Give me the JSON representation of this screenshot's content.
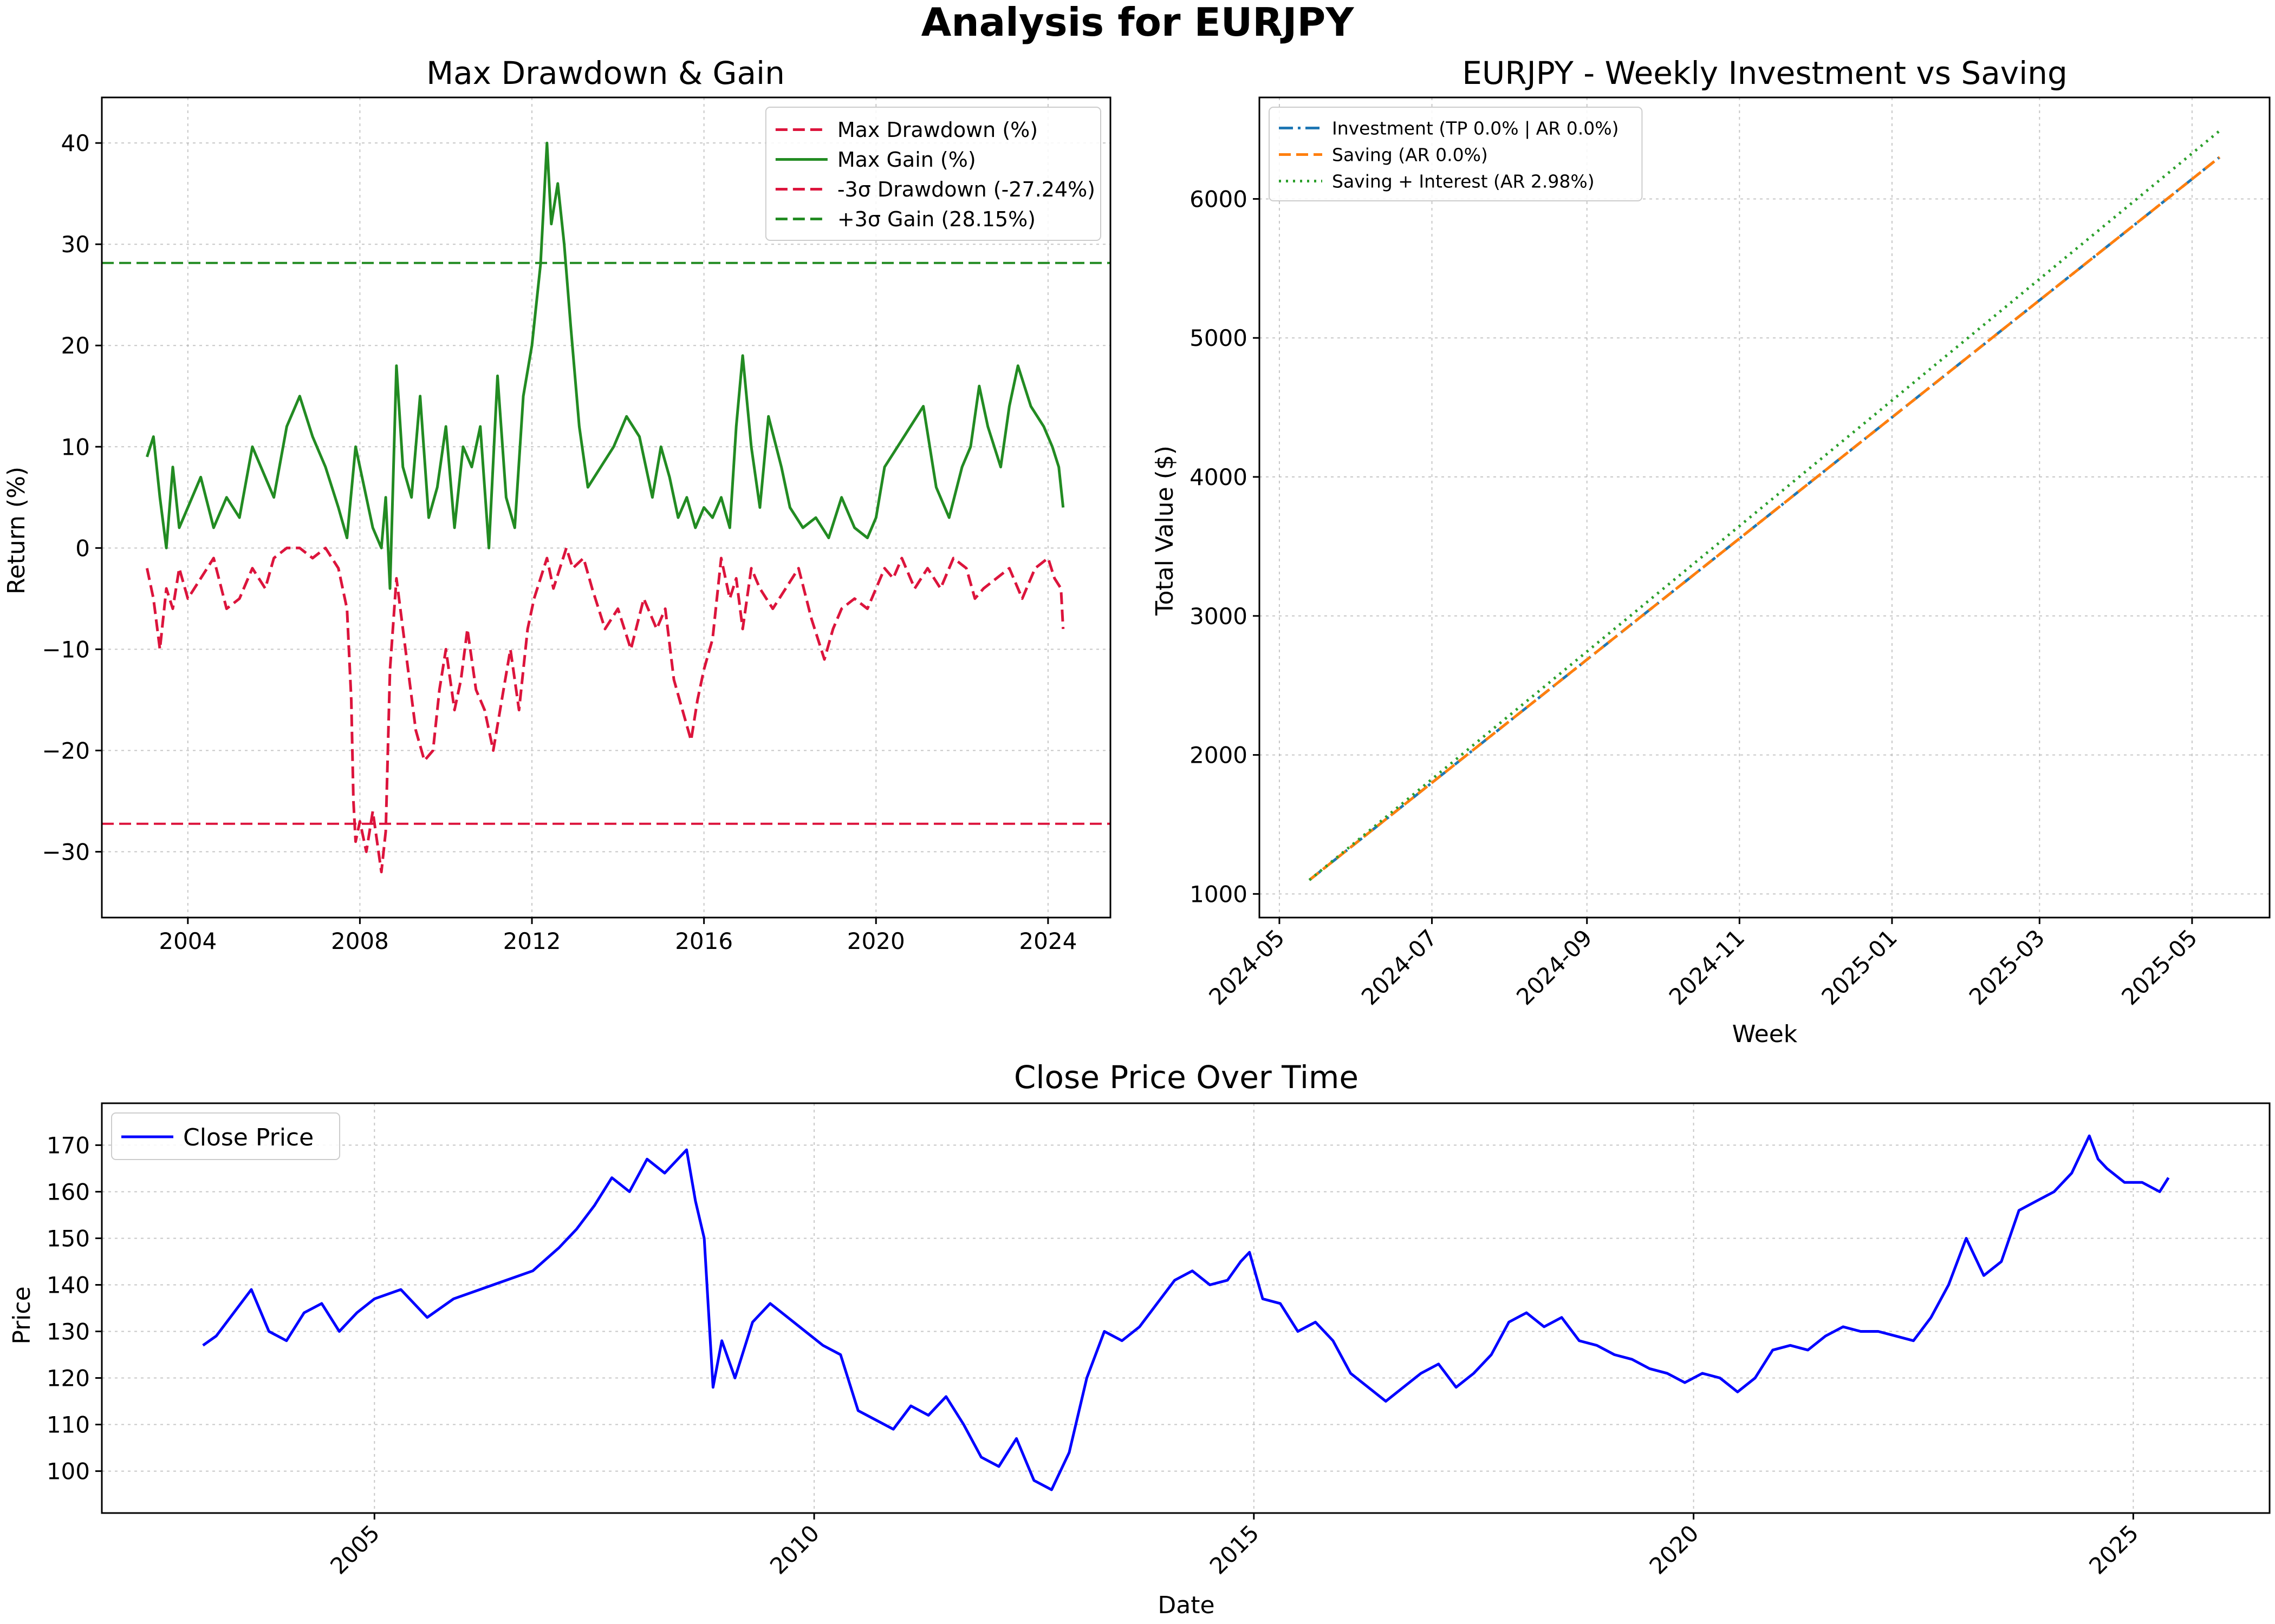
{
  "figure": {
    "suptitle": "Analysis for EURJPY"
  },
  "colors": {
    "drawdown": "#dc143c",
    "gain": "#228b22",
    "investment": "#1f77b4",
    "saving": "#ff7f0e",
    "interest": "#2ca02c",
    "close": "#0000ff",
    "grid": "#b0b0b0"
  },
  "chart_data": [
    {
      "type": "line",
      "title": "Max Drawdown & Gain",
      "xlabel": "",
      "ylabel": "Return (%)",
      "xlim": [
        2002.0,
        2025.45
      ],
      "ylim": [
        -36.5,
        44.5
      ],
      "xticks": [
        2004,
        2008,
        2012,
        2016,
        2020,
        2024
      ],
      "xtick_labels": [
        "2004",
        "2008",
        "2012",
        "2016",
        "2020",
        "2024"
      ],
      "yticks": [
        -30,
        -20,
        -10,
        0,
        10,
        20,
        30,
        40
      ],
      "ytick_labels": [
        "−30",
        "−20",
        "−10",
        "0",
        "10",
        "20",
        "30",
        "40"
      ],
      "grid": true,
      "legend_position": "top-right",
      "series": [
        {
          "name": "Max Drawdown (%)",
          "style": "dashed",
          "color": "#dc143c",
          "x": [
            2003.05,
            2003.2,
            2003.35,
            2003.5,
            2003.65,
            2003.8,
            2004.0,
            2004.3,
            2004.6,
            2004.9,
            2005.2,
            2005.5,
            2005.8,
            2006.0,
            2006.3,
            2006.6,
            2006.9,
            2007.2,
            2007.5,
            2007.7,
            2007.8,
            2007.85,
            2007.9,
            2008.0,
            2008.15,
            2008.3,
            2008.5,
            2008.6,
            2008.7,
            2008.85,
            2009.0,
            2009.3,
            2009.5,
            2009.7,
            2009.85,
            2010.0,
            2010.2,
            2010.35,
            2010.5,
            2010.7,
            2010.9,
            2011.1,
            2011.3,
            2011.5,
            2011.7,
            2011.9,
            2012.05,
            2012.2,
            2012.35,
            2012.5,
            2012.65,
            2012.8,
            2012.95,
            2013.2,
            2013.4,
            2013.7,
            2014.0,
            2014.3,
            2014.6,
            2014.9,
            2015.1,
            2015.3,
            2015.5,
            2015.7,
            2015.85,
            2016.0,
            2016.2,
            2016.4,
            2016.6,
            2016.75,
            2016.9,
            2017.1,
            2017.3,
            2017.6,
            2017.9,
            2018.2,
            2018.5,
            2018.8,
            2019.0,
            2019.2,
            2019.5,
            2019.8,
            2020.0,
            2020.2,
            2020.4,
            2020.6,
            2020.9,
            2021.2,
            2021.5,
            2021.8,
            2022.1,
            2022.3,
            2022.5,
            2022.8,
            2023.1,
            2023.4,
            2023.7,
            2024.0,
            2024.15,
            2024.3,
            2024.35
          ],
          "y": [
            -2,
            -5,
            -10,
            -4,
            -6,
            -2,
            -5,
            -3,
            -1,
            -6,
            -5,
            -2,
            -4,
            -1,
            0,
            0,
            -1,
            0,
            -2,
            -6,
            -15,
            -25,
            -29,
            -27,
            -30,
            -26,
            -32,
            -28,
            -12,
            -3,
            -8,
            -18,
            -21,
            -20,
            -14,
            -10,
            -16,
            -13,
            -8,
            -14,
            -16,
            -20,
            -15,
            -10,
            -16,
            -8,
            -5,
            -3,
            -1,
            -4,
            -2,
            0,
            -2,
            -1,
            -4,
            -8,
            -6,
            -10,
            -5,
            -8,
            -6,
            -13,
            -16,
            -19,
            -15,
            -12,
            -9,
            -1,
            -5,
            -3,
            -8,
            -2,
            -4,
            -6,
            -4,
            -2,
            -7,
            -11,
            -8,
            -6,
            -5,
            -6,
            -4,
            -2,
            -3,
            -1,
            -4,
            -2,
            -4,
            -1,
            -2,
            -5,
            -4,
            -3,
            -2,
            -5,
            -2,
            -1,
            -3,
            -4,
            -8
          ]
        },
        {
          "name": "Max Gain (%)",
          "style": "solid",
          "color": "#228b22",
          "x": [
            2003.05,
            2003.2,
            2003.35,
            2003.5,
            2003.65,
            2003.8,
            2004.0,
            2004.3,
            2004.6,
            2004.9,
            2005.2,
            2005.5,
            2005.8,
            2006.0,
            2006.3,
            2006.6,
            2006.9,
            2007.2,
            2007.5,
            2007.7,
            2007.9,
            2008.1,
            2008.3,
            2008.5,
            2008.6,
            2008.7,
            2008.85,
            2009.0,
            2009.2,
            2009.4,
            2009.6,
            2009.8,
            2010.0,
            2010.2,
            2010.4,
            2010.6,
            2010.8,
            2011.0,
            2011.2,
            2011.4,
            2011.6,
            2011.8,
            2012.0,
            2012.2,
            2012.35,
            2012.45,
            2012.6,
            2012.75,
            2012.9,
            2013.1,
            2013.3,
            2013.6,
            2013.9,
            2014.2,
            2014.5,
            2014.8,
            2015.0,
            2015.2,
            2015.4,
            2015.6,
            2015.8,
            2016.0,
            2016.2,
            2016.4,
            2016.6,
            2016.75,
            2016.9,
            2017.1,
            2017.3,
            2017.5,
            2017.8,
            2018.0,
            2018.3,
            2018.6,
            2018.9,
            2019.2,
            2019.5,
            2019.8,
            2020.0,
            2020.2,
            2020.5,
            2020.8,
            2021.1,
            2021.4,
            2021.7,
            2022.0,
            2022.2,
            2022.4,
            2022.6,
            2022.9,
            2023.1,
            2023.3,
            2023.6,
            2023.9,
            2024.1,
            2024.25,
            2024.35
          ],
          "y": [
            9,
            11,
            5,
            0,
            8,
            2,
            4,
            7,
            2,
            5,
            3,
            10,
            7,
            5,
            12,
            15,
            11,
            8,
            4,
            1,
            10,
            6,
            2,
            0,
            5,
            -4,
            18,
            8,
            5,
            15,
            3,
            6,
            12,
            2,
            10,
            8,
            12,
            0,
            17,
            5,
            2,
            15,
            20,
            28,
            40,
            32,
            36,
            30,
            22,
            12,
            6,
            8,
            10,
            13,
            11,
            5,
            10,
            7,
            3,
            5,
            2,
            4,
            3,
            5,
            2,
            12,
            19,
            10,
            4,
            13,
            8,
            4,
            2,
            3,
            1,
            5,
            2,
            1,
            3,
            8,
            10,
            12,
            14,
            6,
            3,
            8,
            10,
            16,
            12,
            8,
            14,
            18,
            14,
            12,
            10,
            8,
            4
          ]
        },
        {
          "name": "-3σ Drawdown (-27.24%)",
          "style": "dashed",
          "color": "#dc143c",
          "hline": -27.24
        },
        {
          "name": "+3σ Gain (28.15%)",
          "style": "dashed",
          "color": "#228b22",
          "hline": 28.15
        }
      ]
    },
    {
      "type": "line",
      "title": "EURJPY - Weekly Investment vs Saving",
      "xlabel": "Week",
      "ylabel": "Total Value ($)",
      "x_dates": [
        "2024-05-13",
        "2025-05-12"
      ],
      "xlim_dates": [
        "2024-04-23",
        "2025-06-01"
      ],
      "ylim": [
        830,
        6730
      ],
      "xticks": [
        "2024-05-01",
        "2024-07-01",
        "2024-09-01",
        "2024-11-01",
        "2025-01-01",
        "2025-03-01",
        "2025-05-01"
      ],
      "xtick_labels": [
        "2024-05",
        "2024-07",
        "2024-09",
        "2024-11",
        "2025-01",
        "2025-03",
        "2025-05"
      ],
      "yticks": [
        1000,
        2000,
        3000,
        4000,
        5000,
        6000
      ],
      "ytick_labels": [
        "1000",
        "2000",
        "3000",
        "4000",
        "5000",
        "6000"
      ],
      "grid": true,
      "legend_position": "top-left",
      "series": [
        {
          "name": "Investment (TP 0.0% | AR 0.0%)",
          "style": "dashdot",
          "color": "#1f77b4",
          "values": [
            1100,
            6300
          ]
        },
        {
          "name": "Saving (AR 0.0%)",
          "style": "dashed",
          "color": "#ff7f0e",
          "values": [
            1100,
            6300
          ]
        },
        {
          "name": "Saving + Interest (AR 2.98%)",
          "style": "dotted",
          "color": "#2ca02c",
          "values": [
            1100,
            6490
          ]
        }
      ]
    },
    {
      "type": "line",
      "title": "Close Price Over Time",
      "xlabel": "Date",
      "ylabel": "Price",
      "xlim": [
        2001.9,
        2026.55
      ],
      "ylim": [
        91,
        179
      ],
      "xticks": [
        2005,
        2010,
        2015,
        2020,
        2025
      ],
      "xtick_labels": [
        "2005",
        "2010",
        "2015",
        "2020",
        "2025"
      ],
      "yticks": [
        100,
        110,
        120,
        130,
        140,
        150,
        160,
        170
      ],
      "ytick_labels": [
        "100",
        "110",
        "120",
        "130",
        "140",
        "150",
        "160",
        "170"
      ],
      "grid": true,
      "legend_position": "top-left",
      "series": [
        {
          "name": "Close Price",
          "style": "solid",
          "color": "#0000ff",
          "x": [
            2003.05,
            2003.2,
            2003.4,
            2003.6,
            2003.8,
            2004.0,
            2004.2,
            2004.4,
            2004.6,
            2004.8,
            2005.0,
            2005.3,
            2005.6,
            2005.9,
            2006.2,
            2006.5,
            2006.8,
            2007.1,
            2007.3,
            2007.5,
            2007.7,
            2007.9,
            2008.1,
            2008.3,
            2008.45,
            2008.55,
            2008.65,
            2008.75,
            2008.85,
            2008.95,
            2009.1,
            2009.3,
            2009.5,
            2009.7,
            2009.9,
            2010.1,
            2010.3,
            2010.5,
            2010.7,
            2010.9,
            2011.1,
            2011.3,
            2011.5,
            2011.7,
            2011.9,
            2012.1,
            2012.3,
            2012.5,
            2012.7,
            2012.9,
            2013.1,
            2013.3,
            2013.5,
            2013.7,
            2013.9,
            2014.1,
            2014.3,
            2014.5,
            2014.7,
            2014.85,
            2014.95,
            2015.1,
            2015.3,
            2015.5,
            2015.7,
            2015.9,
            2016.1,
            2016.3,
            2016.5,
            2016.7,
            2016.9,
            2017.1,
            2017.3,
            2017.5,
            2017.7,
            2017.9,
            2018.1,
            2018.3,
            2018.5,
            2018.7,
            2018.9,
            2019.1,
            2019.3,
            2019.5,
            2019.7,
            2019.9,
            2020.1,
            2020.3,
            2020.5,
            2020.7,
            2020.9,
            2021.1,
            2021.3,
            2021.5,
            2021.7,
            2021.9,
            2022.1,
            2022.3,
            2022.5,
            2022.7,
            2022.9,
            2023.1,
            2023.3,
            2023.5,
            2023.7,
            2023.9,
            2024.1,
            2024.3,
            2024.5,
            2024.6,
            2024.7,
            2024.9,
            2025.1,
            2025.3,
            2025.4
          ],
          "y": [
            127,
            129,
            134,
            139,
            130,
            128,
            134,
            136,
            130,
            134,
            137,
            139,
            133,
            137,
            139,
            141,
            143,
            148,
            152,
            157,
            163,
            160,
            167,
            164,
            167,
            169,
            158,
            150,
            118,
            128,
            120,
            132,
            136,
            133,
            130,
            127,
            125,
            113,
            111,
            109,
            114,
            112,
            116,
            110,
            103,
            101,
            107,
            98,
            96,
            104,
            120,
            130,
            128,
            131,
            136,
            141,
            143,
            140,
            141,
            145,
            147,
            137,
            136,
            130,
            132,
            128,
            121,
            118,
            115,
            118,
            121,
            123,
            118,
            121,
            125,
            132,
            134,
            131,
            133,
            128,
            127,
            125,
            124,
            122,
            121,
            119,
            121,
            120,
            117,
            120,
            126,
            127,
            126,
            129,
            131,
            130,
            130,
            129,
            128,
            133,
            140,
            150,
            142,
            145,
            156,
            158,
            160,
            164,
            172,
            167,
            165,
            162,
            162,
            160,
            163
          ]
        }
      ]
    }
  ]
}
